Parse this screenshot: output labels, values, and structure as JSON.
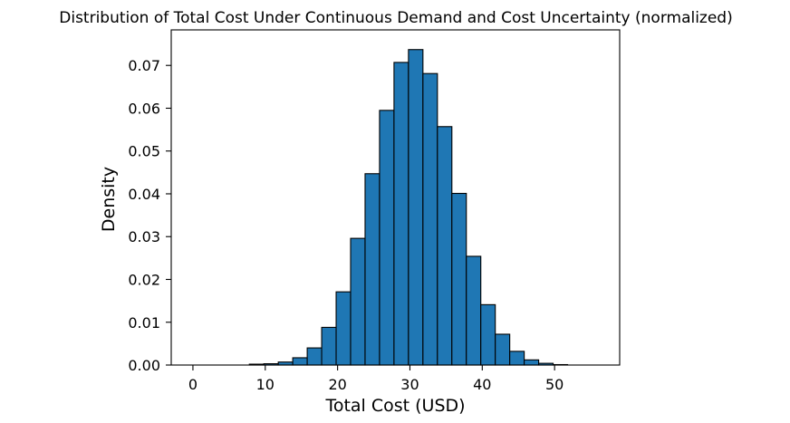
{
  "chart_data": {
    "type": "bar",
    "title": "Distribution of Total Cost Under Continuous Demand and Cost Uncertainty (normalized)",
    "xlabel": "Total Cost (USD)",
    "ylabel": "Density",
    "xlim": [
      -3,
      59
    ],
    "ylim": [
      0,
      0.0783
    ],
    "x_ticks": [
      0,
      10,
      20,
      30,
      40,
      50
    ],
    "x_tick_labels": [
      "0",
      "10",
      "20",
      "30",
      "40",
      "50"
    ],
    "y_ticks": [
      0,
      0.01,
      0.02,
      0.03,
      0.04,
      0.05,
      0.06,
      0.07
    ],
    "y_tick_labels": [
      "0.00",
      "0.01",
      "0.02",
      "0.03",
      "0.04",
      "0.05",
      "0.06",
      "0.07"
    ],
    "grid": false,
    "bins": [
      {
        "x0": -0.2,
        "x1": 1.8,
        "value": 0.0
      },
      {
        "x0": 1.8,
        "x1": 3.8,
        "value": 0.0
      },
      {
        "x0": 3.8,
        "x1": 5.8,
        "value": 0.0
      },
      {
        "x0": 5.8,
        "x1": 7.8,
        "value": 0.0
      },
      {
        "x0": 7.8,
        "x1": 9.8,
        "value": 0.0002
      },
      {
        "x0": 9.8,
        "x1": 11.8,
        "value": 0.0003
      },
      {
        "x0": 11.8,
        "x1": 13.8,
        "value": 0.0007
      },
      {
        "x0": 13.8,
        "x1": 15.8,
        "value": 0.0017
      },
      {
        "x0": 15.8,
        "x1": 17.8,
        "value": 0.004
      },
      {
        "x0": 17.8,
        "x1": 19.8,
        "value": 0.0088
      },
      {
        "x0": 19.8,
        "x1": 21.8,
        "value": 0.0171
      },
      {
        "x0": 21.8,
        "x1": 23.8,
        "value": 0.0296
      },
      {
        "x0": 23.8,
        "x1": 25.8,
        "value": 0.0447
      },
      {
        "x0": 25.8,
        "x1": 27.8,
        "value": 0.0595
      },
      {
        "x0": 27.8,
        "x1": 29.8,
        "value": 0.0707
      },
      {
        "x0": 29.8,
        "x1": 31.8,
        "value": 0.0737
      },
      {
        "x0": 31.8,
        "x1": 33.8,
        "value": 0.0681
      },
      {
        "x0": 33.8,
        "x1": 35.8,
        "value": 0.0557
      },
      {
        "x0": 35.8,
        "x1": 37.8,
        "value": 0.0401
      },
      {
        "x0": 37.8,
        "x1": 39.8,
        "value": 0.0254
      },
      {
        "x0": 39.8,
        "x1": 41.8,
        "value": 0.0141
      },
      {
        "x0": 41.8,
        "x1": 43.8,
        "value": 0.0072
      },
      {
        "x0": 43.8,
        "x1": 45.8,
        "value": 0.0032
      },
      {
        "x0": 45.8,
        "x1": 47.8,
        "value": 0.0012
      },
      {
        "x0": 47.8,
        "x1": 49.8,
        "value": 0.0004
      },
      {
        "x0": 49.8,
        "x1": 51.8,
        "value": 0.0001
      },
      {
        "x0": 51.8,
        "x1": 53.8,
        "value": 0.0
      },
      {
        "x0": 53.8,
        "x1": 55.8,
        "value": 0.0
      },
      {
        "x0": 55.8,
        "x1": 57.8,
        "value": 0.0
      }
    ],
    "colors": {
      "bar_fill": "#1f77b4",
      "bar_edge": "#000000"
    }
  }
}
